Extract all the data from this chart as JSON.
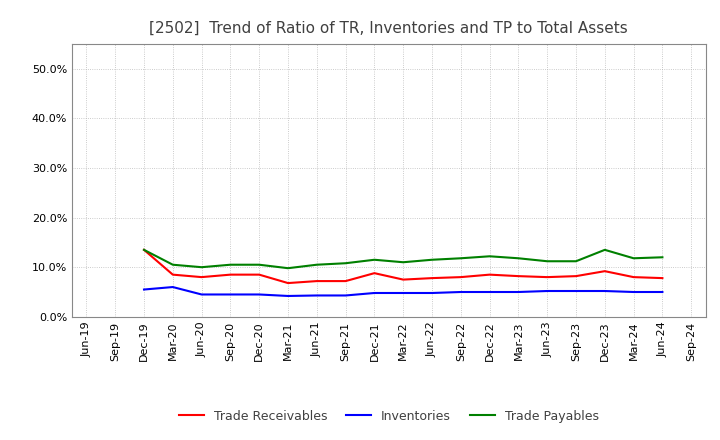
{
  "title": "[2502]  Trend of Ratio of TR, Inventories and TP to Total Assets",
  "x_labels": [
    "Jun-19",
    "Sep-19",
    "Dec-19",
    "Mar-20",
    "Jun-20",
    "Sep-20",
    "Dec-20",
    "Mar-21",
    "Jun-21",
    "Sep-21",
    "Dec-21",
    "Mar-22",
    "Jun-22",
    "Sep-22",
    "Dec-22",
    "Mar-23",
    "Jun-23",
    "Sep-23",
    "Dec-23",
    "Mar-24",
    "Jun-24",
    "Sep-24"
  ],
  "trade_receivables": [
    null,
    null,
    13.5,
    8.5,
    8.0,
    8.5,
    8.5,
    6.8,
    7.2,
    7.2,
    8.8,
    7.5,
    7.8,
    8.0,
    8.5,
    8.2,
    8.0,
    8.2,
    9.2,
    8.0,
    7.8,
    null
  ],
  "inventories": [
    null,
    null,
    5.5,
    6.0,
    4.5,
    4.5,
    4.5,
    4.2,
    4.3,
    4.3,
    4.8,
    4.8,
    4.8,
    5.0,
    5.0,
    5.0,
    5.2,
    5.2,
    5.2,
    5.0,
    5.0,
    null
  ],
  "trade_payables": [
    null,
    null,
    13.5,
    10.5,
    10.0,
    10.5,
    10.5,
    9.8,
    10.5,
    10.8,
    11.5,
    11.0,
    11.5,
    11.8,
    12.2,
    11.8,
    11.2,
    11.2,
    13.5,
    11.8,
    12.0,
    null
  ],
  "tr_color": "#ff0000",
  "inv_color": "#0000ff",
  "tp_color": "#008000",
  "ylim_max": 0.55,
  "yticks": [
    0.0,
    0.1,
    0.2,
    0.3,
    0.4,
    0.5
  ],
  "background_color": "#ffffff",
  "grid_color": "#aaaaaa",
  "title_color": "#404040",
  "title_fontsize": 11.0,
  "tick_fontsize": 8.0,
  "legend_labels": [
    "Trade Receivables",
    "Inventories",
    "Trade Payables"
  ],
  "legend_fontsize": 9.0,
  "line_width": 1.5
}
